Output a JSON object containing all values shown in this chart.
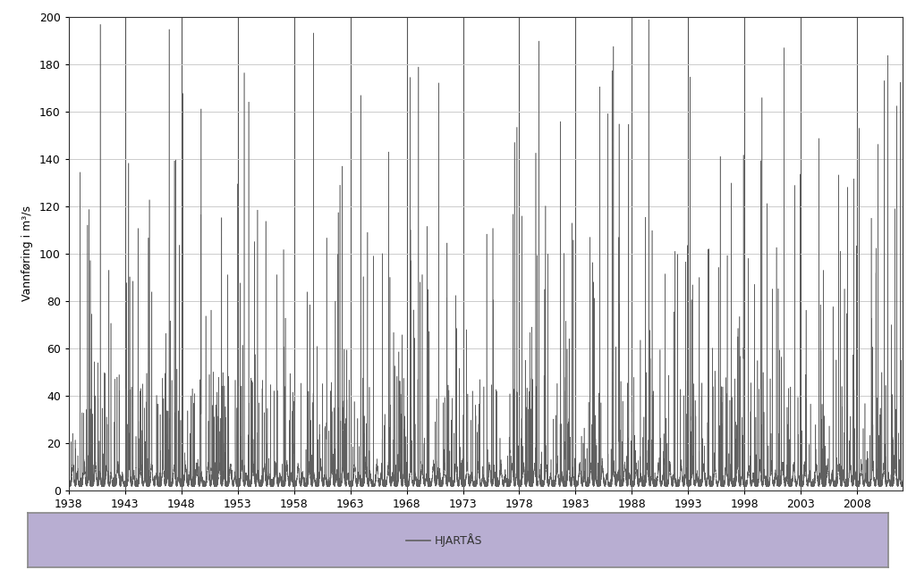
{
  "ylabel": "Vannføring i m³/s",
  "xlim": [
    1938,
    2012
  ],
  "ylim": [
    0,
    200
  ],
  "yticks": [
    0,
    20,
    40,
    60,
    80,
    100,
    120,
    140,
    160,
    180,
    200
  ],
  "xticks": [
    1938,
    1943,
    1948,
    1953,
    1958,
    1963,
    1968,
    1973,
    1978,
    1983,
    1988,
    1993,
    1998,
    2003,
    2008
  ],
  "line_color": "#606060",
  "line_width": 0.4,
  "background_color": "#ffffff",
  "grid_color_h": "#cccccc",
  "grid_color_v": "#555555",
  "legend_label": "HJARTÅS",
  "legend_bg": "#b8aed2",
  "legend_border": "#888888",
  "start_year": 1938,
  "end_year": 2012,
  "steps_per_year": 365
}
